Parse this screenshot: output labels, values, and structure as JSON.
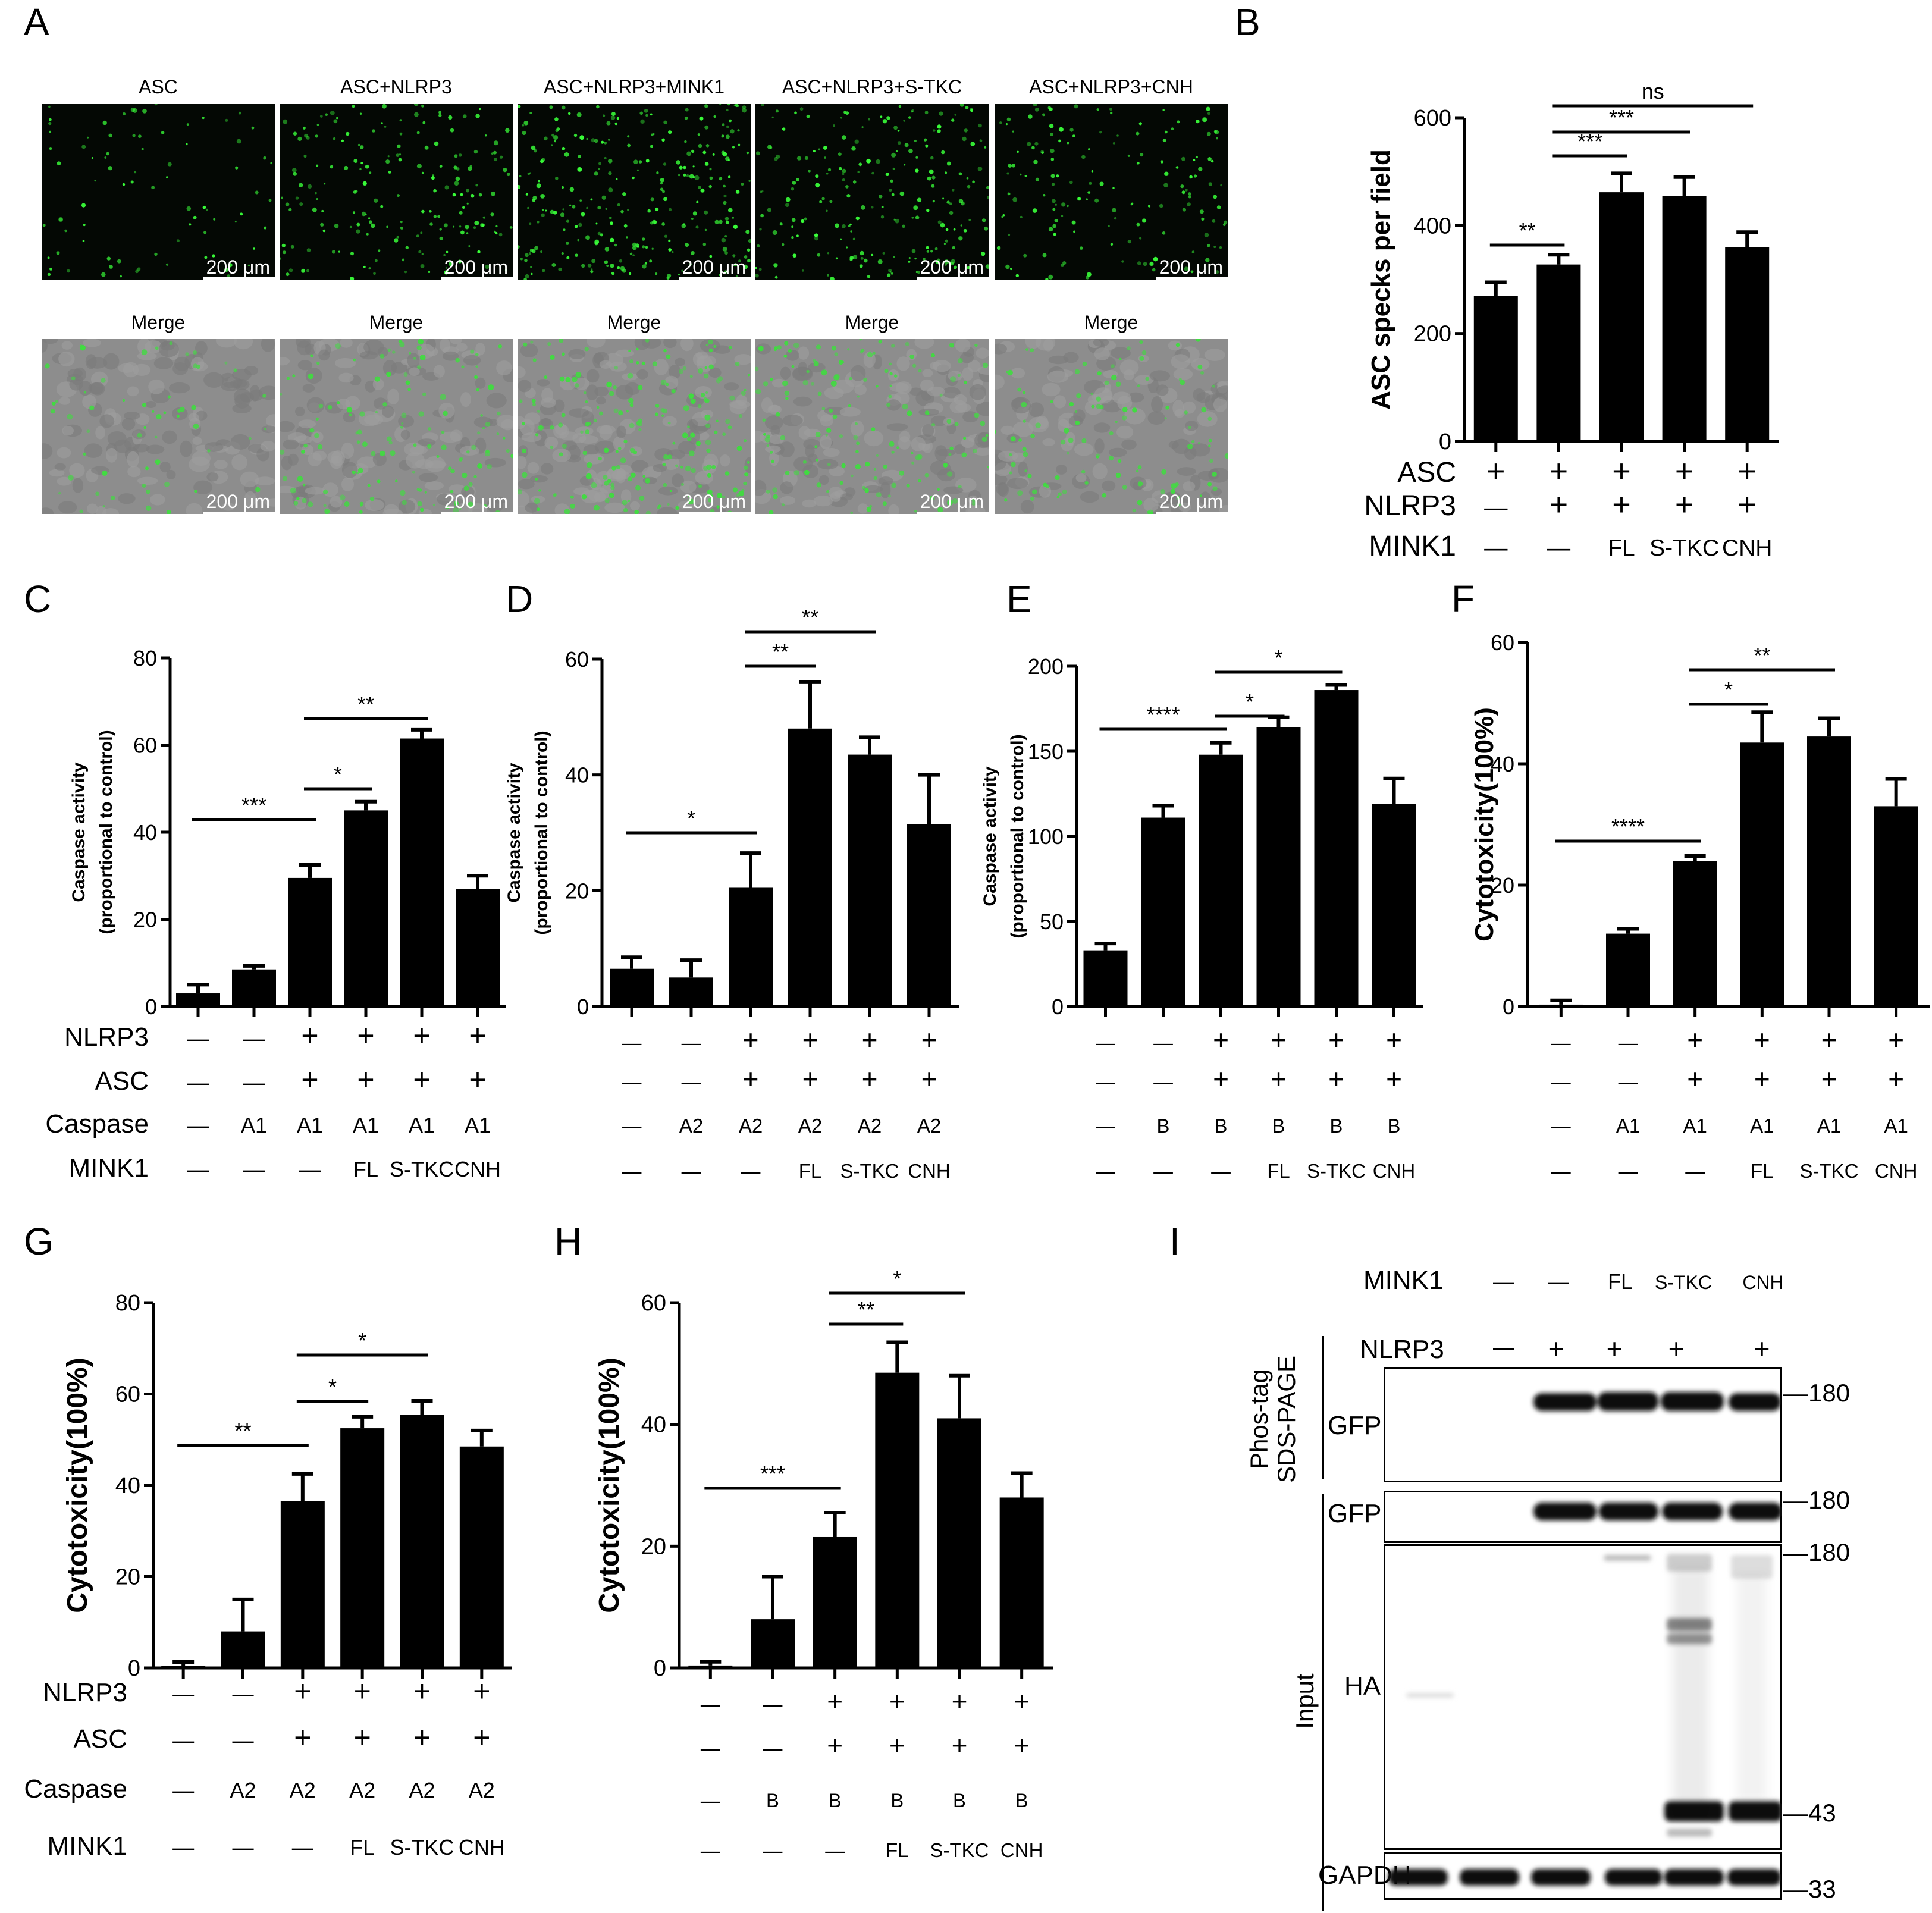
{
  "colors": {
    "bar": "#000000",
    "fluor_dot": "#39ff39",
    "fluor_bg": "#040804",
    "merge_bg": "#8d8d8d"
  },
  "panel_letters": [
    "A",
    "B",
    "C",
    "D",
    "E",
    "F",
    "G",
    "H",
    "I"
  ],
  "panelA": {
    "top_labels": [
      "ASC",
      "ASC+NLRP3",
      "ASC+NLRP3+MINK1",
      "ASC+NLRP3+S-TKC",
      "ASC+NLRP3+CNH"
    ],
    "bottom_labels": [
      "Merge",
      "Merge",
      "Merge",
      "Merge",
      "Merge"
    ],
    "scale": "200 μm",
    "dot_density": [
      0.25,
      0.6,
      0.9,
      0.7,
      0.5
    ]
  },
  "panelI": {
    "mink1_label": "MINK1",
    "mink1_values": [
      "—",
      "—",
      "FL",
      "S-TKC",
      "CNH"
    ],
    "nlrp3_label": "NLRP3",
    "nlrp3_values": [
      "—",
      "+",
      "+",
      "+",
      "+"
    ],
    "phos_label_1": "Phos-tag",
    "phos_label_2": "SDS-PAGE",
    "input_label": "Input",
    "blots": [
      "GFP",
      "GFP",
      "HA",
      "GAPDH"
    ],
    "markers": [
      "180",
      "180",
      "180",
      "43",
      "33"
    ]
  },
  "chart_data": [
    {
      "id": "B",
      "type": "bar",
      "ylabel": "ASC specks per field",
      "ylim": [
        0,
        600
      ],
      "yticks": [
        0,
        200,
        400,
        600
      ],
      "values": [
        270,
        328,
        462,
        455,
        360
      ],
      "errors": [
        25,
        18,
        35,
        35,
        28
      ],
      "conditions": [
        {
          "label": "ASC",
          "values": [
            "+",
            "+",
            "+",
            "+",
            "+"
          ]
        },
        {
          "label": "NLRP3",
          "values": [
            "—",
            "+",
            "+",
            "+",
            "+"
          ]
        },
        {
          "label": "MINK1",
          "values": [
            "—",
            "—",
            "FL",
            "S-TKC",
            "CNH"
          ]
        }
      ],
      "significance": [
        {
          "from": 0,
          "to": 1,
          "label": "**"
        },
        {
          "from": 1,
          "to": 2,
          "label": "***"
        },
        {
          "from": 1,
          "to": 3,
          "label": "***"
        },
        {
          "from": 1,
          "to": 4,
          "label": "ns"
        }
      ]
    },
    {
      "id": "C",
      "type": "bar",
      "ylabel": "Caspase activity",
      "ylabel2": "(proportional to control)",
      "ylim": [
        0,
        80
      ],
      "yticks": [
        0,
        20,
        40,
        60,
        80
      ],
      "values": [
        3,
        8.5,
        29.5,
        45,
        61.5,
        27
      ],
      "errors": [
        2,
        0.8,
        3,
        2,
        2,
        3
      ],
      "conditions": [
        {
          "label": "NLRP3",
          "values": [
            "—",
            "—",
            "+",
            "+",
            "+",
            "+"
          ]
        },
        {
          "label": "ASC",
          "values": [
            "—",
            "—",
            "+",
            "+",
            "+",
            "+"
          ]
        },
        {
          "label": "Caspase",
          "values": [
            "—",
            "A1",
            "A1",
            "A1",
            "A1",
            "A1"
          ]
        },
        {
          "label": "MINK1",
          "values": [
            "—",
            "—",
            "—",
            "FL",
            "S-TKC",
            "CNH"
          ]
        }
      ],
      "significance": [
        {
          "from": 0,
          "to": 2,
          "label": "***"
        },
        {
          "from": 2,
          "to": 3,
          "label": "*"
        },
        {
          "from": 2,
          "to": 4,
          "label": "**"
        }
      ]
    },
    {
      "id": "D",
      "type": "bar",
      "ylabel": "Caspase activity",
      "ylabel2": "(proportional to control)",
      "ylim": [
        0,
        60
      ],
      "yticks": [
        0,
        20,
        40,
        60
      ],
      "values": [
        6.5,
        5,
        20.5,
        48,
        43.5,
        31.5
      ],
      "errors": [
        2,
        3,
        6,
        8,
        3,
        8.5
      ],
      "conditions": [
        {
          "label": "",
          "values": [
            "—",
            "—",
            "+",
            "+",
            "+",
            "+"
          ]
        },
        {
          "label": "",
          "values": [
            "—",
            "—",
            "+",
            "+",
            "+",
            "+"
          ]
        },
        {
          "label": "",
          "values": [
            "—",
            "A2",
            "A2",
            "A2",
            "A2",
            "A2"
          ]
        },
        {
          "label": "",
          "values": [
            "—",
            "—",
            "—",
            "FL",
            "S-TKC",
            "CNH"
          ]
        }
      ],
      "significance": [
        {
          "from": 0,
          "to": 2,
          "label": "*"
        },
        {
          "from": 2,
          "to": 3,
          "label": "**"
        },
        {
          "from": 2,
          "to": 4,
          "label": "**"
        }
      ]
    },
    {
      "id": "E",
      "type": "bar",
      "ylabel": "Caspase activity",
      "ylabel2": "(proportional to control)",
      "ylim": [
        0,
        200
      ],
      "yticks": [
        0,
        50,
        100,
        150,
        200
      ],
      "values": [
        33,
        111,
        148,
        164,
        186,
        119
      ],
      "errors": [
        4,
        7,
        7,
        6,
        3,
        15
      ],
      "conditions": [
        {
          "label": "",
          "values": [
            "—",
            "—",
            "+",
            "+",
            "+",
            "+"
          ]
        },
        {
          "label": "",
          "values": [
            "—",
            "—",
            "+",
            "+",
            "+",
            "+"
          ]
        },
        {
          "label": "",
          "values": [
            "—",
            "B",
            "B",
            "B",
            "B",
            "B"
          ]
        },
        {
          "label": "",
          "values": [
            "—",
            "—",
            "—",
            "FL",
            "S-TKC",
            "CNH"
          ]
        }
      ],
      "significance": [
        {
          "from": 0,
          "to": 2,
          "label": "****"
        },
        {
          "from": 2,
          "to": 3,
          "label": "*"
        },
        {
          "from": 2,
          "to": 4,
          "label": "*"
        }
      ]
    },
    {
      "id": "F",
      "type": "bar",
      "ylabel": "Cytotoxicity(100%)",
      "ylim": [
        0,
        60
      ],
      "yticks": [
        0,
        20,
        40,
        60
      ],
      "values": [
        0.3,
        12,
        24,
        43.5,
        44.5,
        33
      ],
      "errors": [
        0.7,
        0.8,
        0.8,
        5,
        3,
        4.5
      ],
      "conditions": [
        {
          "label": "",
          "values": [
            "—",
            "—",
            "+",
            "+",
            "+",
            "+"
          ]
        },
        {
          "label": "",
          "values": [
            "—",
            "—",
            "+",
            "+",
            "+",
            "+"
          ]
        },
        {
          "label": "",
          "values": [
            "—",
            "A1",
            "A1",
            "A1",
            "A1",
            "A1"
          ]
        },
        {
          "label": "",
          "values": [
            "—",
            "—",
            "—",
            "FL",
            "S-TKC",
            "CNH"
          ]
        }
      ],
      "significance": [
        {
          "from": 0,
          "to": 2,
          "label": "****"
        },
        {
          "from": 2,
          "to": 3,
          "label": "*"
        },
        {
          "from": 2,
          "to": 4,
          "label": "**"
        }
      ]
    },
    {
      "id": "G",
      "type": "bar",
      "ylabel": "Cytotoxicity(100%)",
      "ylim": [
        0,
        80
      ],
      "yticks": [
        0,
        20,
        40,
        60,
        80
      ],
      "values": [
        0.5,
        8,
        36.5,
        52.5,
        55.5,
        48.5
      ],
      "errors": [
        0.8,
        7,
        6,
        2.5,
        3,
        3.5
      ],
      "conditions": [
        {
          "label": "NLRP3",
          "values": [
            "—",
            "—",
            "+",
            "+",
            "+",
            "+"
          ]
        },
        {
          "label": "ASC",
          "values": [
            "—",
            "—",
            "+",
            "+",
            "+",
            "+"
          ]
        },
        {
          "label": "Caspase",
          "values": [
            "—",
            "A2",
            "A2",
            "A2",
            "A2",
            "A2"
          ]
        },
        {
          "label": "MINK1",
          "values": [
            "—",
            "—",
            "—",
            "FL",
            "S-TKC",
            "CNH"
          ]
        }
      ],
      "significance": [
        {
          "from": 0,
          "to": 2,
          "label": "**"
        },
        {
          "from": 2,
          "to": 3,
          "label": "*"
        },
        {
          "from": 2,
          "to": 4,
          "label": "*"
        }
      ]
    },
    {
      "id": "H",
      "type": "bar",
      "ylabel": "Cytotoxicity(100%)",
      "ylim": [
        0,
        60
      ],
      "yticks": [
        0,
        20,
        40,
        60
      ],
      "values": [
        0.4,
        8,
        21.5,
        48.5,
        41,
        28
      ],
      "errors": [
        0.6,
        7,
        4,
        5,
        7,
        4
      ],
      "conditions": [
        {
          "label": "",
          "values": [
            "—",
            "—",
            "+",
            "+",
            "+",
            "+"
          ]
        },
        {
          "label": "",
          "values": [
            "—",
            "—",
            "+",
            "+",
            "+",
            "+"
          ]
        },
        {
          "label": "",
          "values": [
            "—",
            "B",
            "B",
            "B",
            "B",
            "B"
          ]
        },
        {
          "label": "",
          "values": [
            "—",
            "—",
            "—",
            "FL",
            "S-TKC",
            "CNH"
          ]
        }
      ],
      "significance": [
        {
          "from": 0,
          "to": 2,
          "label": "***"
        },
        {
          "from": 2,
          "to": 3,
          "label": "**"
        },
        {
          "from": 2,
          "to": 4,
          "label": "*"
        }
      ]
    }
  ]
}
